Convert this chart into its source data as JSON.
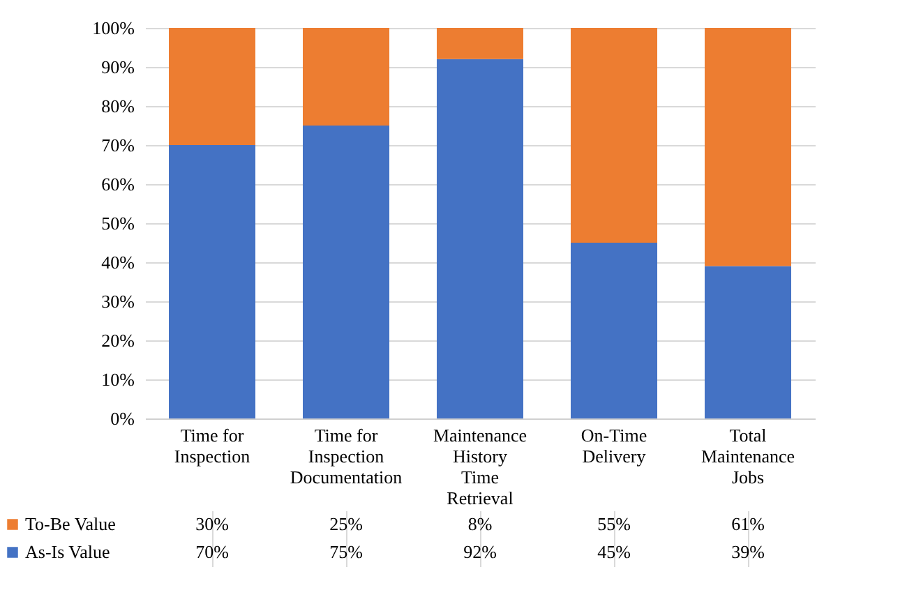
{
  "chart_data": {
    "type": "bar",
    "stacked": true,
    "categories": [
      "Time for Inspection",
      "Time for Inspection Documentation",
      "Maintenance History Time Retrieval",
      "On-Time Delivery",
      "Total Maintenance Jobs"
    ],
    "series": [
      {
        "name": "As-Is Value",
        "color": "#4472c4",
        "values": [
          70,
          75,
          92,
          45,
          39
        ],
        "value_labels": [
          "70%",
          "75%",
          "92%",
          "45%",
          "39%"
        ]
      },
      {
        "name": "To-Be Value",
        "color": "#ed7d31",
        "values": [
          30,
          25,
          8,
          55,
          61
        ],
        "value_labels": [
          "30%",
          "25%",
          "8%",
          "55%",
          "61%"
        ]
      }
    ],
    "ylim": [
      0,
      100
    ],
    "yticks": [
      {
        "value": 0,
        "label": "0%"
      },
      {
        "value": 10,
        "label": "10%"
      },
      {
        "value": 20,
        "label": "20%"
      },
      {
        "value": 30,
        "label": "30%"
      },
      {
        "value": 40,
        "label": "40%"
      },
      {
        "value": 50,
        "label": "50%"
      },
      {
        "value": 60,
        "label": "60%"
      },
      {
        "value": 70,
        "label": "70%"
      },
      {
        "value": 80,
        "label": "80%"
      },
      {
        "value": 90,
        "label": "90%"
      },
      {
        "value": 100,
        "label": "100%"
      }
    ],
    "grid": "y",
    "legend": "bottom"
  }
}
